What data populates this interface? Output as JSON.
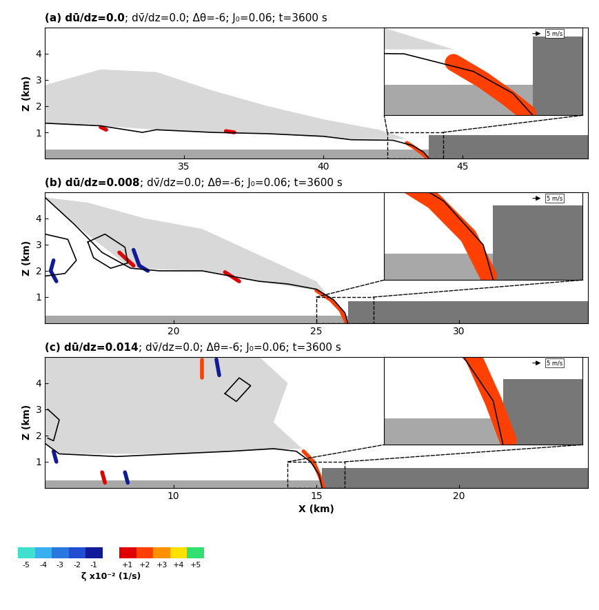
{
  "chart_data": [
    {
      "type": "contour_field",
      "title_bold": "(a) dū/dz=0.0",
      "title": "; dv̄/dz=0.0; Δθ=-6; J₀=0.06; t=3600 s",
      "xlim": [
        30,
        49.5
      ],
      "xticks": [
        35,
        40,
        45
      ],
      "ylim": [
        0,
        5
      ],
      "yticks": [
        1,
        2,
        3,
        4
      ],
      "y_label": "Z (km)",
      "front_x": 43.8,
      "ambient_layer_top": 0.9,
      "surface_layer_top": 0.35,
      "mixing_region": [
        [
          30,
          1.35
        ],
        [
          30,
          2.8
        ],
        [
          32,
          3.4
        ],
        [
          34,
          3.3
        ],
        [
          36,
          2.6
        ],
        [
          38,
          2.0
        ],
        [
          40,
          1.5
        ],
        [
          42,
          1.1
        ],
        [
          43,
          0.75
        ],
        [
          41,
          0.75
        ],
        [
          38,
          0.95
        ],
        [
          34,
          1.1
        ],
        [
          32,
          1.25
        ]
      ],
      "outline": [
        [
          30,
          1.35
        ],
        [
          32,
          1.25
        ],
        [
          33.5,
          1.0
        ],
        [
          34,
          1.1
        ],
        [
          36,
          1.0
        ],
        [
          38,
          0.95
        ],
        [
          40,
          0.85
        ],
        [
          41,
          0.72
        ],
        [
          42.5,
          0.7
        ],
        [
          43.2,
          0.5
        ],
        [
          43.6,
          0.25
        ],
        [
          43.8,
          0.0
        ]
      ],
      "outline_loops": [],
      "vorticity": [
        {
          "zeta": 1.5,
          "points": [
            [
              43.0,
              0.6
            ],
            [
              43.3,
              0.4
            ],
            [
              43.55,
              0.2
            ],
            [
              43.75,
              0.02
            ]
          ]
        },
        {
          "zeta": 1,
          "points": [
            [
              32.0,
              1.2
            ],
            [
              32.2,
              1.1
            ]
          ]
        },
        {
          "zeta": 1,
          "points": [
            [
              36.5,
              1.05
            ],
            [
              36.8,
              1.0
            ]
          ]
        }
      ],
      "inset_xlim": [
        42.3,
        44.3
      ],
      "inset_ylim": [
        0,
        1
      ],
      "inset_key": "5 m/s"
    },
    {
      "type": "contour_field",
      "title_bold": "(b) dū/dz=0.008",
      "title": "; dv̄/dz=0.0; Δθ=-6; J₀=0.06; t=3600 s",
      "xlim": [
        15.5,
        34.5
      ],
      "xticks": [
        20,
        25,
        30
      ],
      "ylim": [
        0,
        5
      ],
      "yticks": [
        1,
        2,
        3,
        4
      ],
      "y_label": "Z (km)",
      "front_x": 26.1,
      "ambient_layer_top": 0.85,
      "surface_layer_top": 0.3,
      "mixing_region": [
        [
          15.5,
          4.8
        ],
        [
          17,
          4.6
        ],
        [
          19,
          4.0
        ],
        [
          21,
          3.6
        ],
        [
          23,
          2.6
        ],
        [
          25,
          1.6
        ],
        [
          25.3,
          1.2
        ],
        [
          23,
          1.6
        ],
        [
          21,
          2.0
        ],
        [
          18.5,
          2.1
        ],
        [
          16.5,
          3.8
        ]
      ],
      "outline": [
        [
          15.5,
          4.8
        ],
        [
          16.5,
          3.8
        ],
        [
          17.5,
          2.7
        ],
        [
          18.5,
          2.1
        ],
        [
          19.5,
          2.0
        ],
        [
          21,
          2.0
        ],
        [
          22,
          1.8
        ],
        [
          23,
          1.6
        ],
        [
          24,
          1.5
        ],
        [
          25,
          1.3
        ],
        [
          25.6,
          0.9
        ],
        [
          26.0,
          0.4
        ],
        [
          26.1,
          0.0
        ]
      ],
      "outline_loops": [
        [
          [
            15.5,
            3.4
          ],
          [
            16.3,
            3.2
          ],
          [
            16.6,
            2.4
          ],
          [
            16.2,
            1.9
          ],
          [
            15.5,
            1.8
          ]
        ],
        [
          [
            17.0,
            3.1
          ],
          [
            17.6,
            3.4
          ],
          [
            18.3,
            2.9
          ],
          [
            18.4,
            2.3
          ],
          [
            17.8,
            2.1
          ],
          [
            17.2,
            2.5
          ],
          [
            17.0,
            3.1
          ]
        ]
      ],
      "vorticity": [
        {
          "zeta": 1.5,
          "points": [
            [
              25.0,
              1.25
            ],
            [
              25.5,
              0.9
            ],
            [
              25.85,
              0.5
            ],
            [
              26.05,
              0.05
            ]
          ]
        },
        {
          "zeta": 1,
          "points": [
            [
              21.8,
              1.95
            ],
            [
              22.3,
              1.6
            ]
          ]
        },
        {
          "zeta": -1.5,
          "points": [
            [
              15.8,
              2.4
            ],
            [
              15.7,
              2.0
            ],
            [
              15.9,
              1.6
            ]
          ]
        },
        {
          "zeta": 1,
          "points": [
            [
              18.1,
              2.7
            ],
            [
              18.6,
              2.2
            ]
          ]
        },
        {
          "zeta": -1,
          "points": [
            [
              18.6,
              2.8
            ],
            [
              18.8,
              2.2
            ],
            [
              19.1,
              2.0
            ]
          ]
        }
      ],
      "inset_xlim": [
        25,
        27
      ],
      "inset_ylim": [
        0,
        1
      ],
      "inset_key": "5 m/s"
    },
    {
      "type": "contour_field",
      "title_bold": "(c) dū/dz=0.014",
      "title": "; dv̄/dz=0.0; Δθ=-6; J₀=0.06; t=3600 s",
      "xlim": [
        5.5,
        24.5
      ],
      "xticks": [
        10,
        15,
        20
      ],
      "ylim": [
        0,
        5
      ],
      "yticks": [
        1,
        2,
        3,
        4
      ],
      "y_label": "Z (km)",
      "x_label": "X (km)",
      "front_x": 15.2,
      "ambient_layer_top": 0.75,
      "surface_layer_top": 0.3,
      "mixing_region": [
        [
          5.5,
          1.7
        ],
        [
          5.5,
          5
        ],
        [
          13,
          5
        ],
        [
          14,
          4
        ],
        [
          13.5,
          2.5
        ],
        [
          14.5,
          1.5
        ],
        [
          10,
          1.3
        ],
        [
          6,
          1.3
        ]
      ],
      "outline": [
        [
          5.5,
          1.7
        ],
        [
          6,
          1.3
        ],
        [
          8,
          1.2
        ],
        [
          10,
          1.3
        ],
        [
          12,
          1.4
        ],
        [
          13.5,
          1.5
        ],
        [
          14.3,
          1.4
        ],
        [
          14.8,
          1.0
        ],
        [
          15.1,
          0.5
        ],
        [
          15.2,
          0.0
        ]
      ],
      "outline_loops": [
        [
          [
            11.8,
            3.6
          ],
          [
            12.3,
            4.2
          ],
          [
            12.7,
            3.9
          ],
          [
            12.2,
            3.3
          ],
          [
            11.8,
            3.6
          ]
        ],
        [
          [
            5.6,
            3.0
          ],
          [
            6.0,
            2.6
          ],
          [
            5.8,
            1.8
          ],
          [
            5.6,
            1.9
          ]
        ]
      ],
      "vorticity": [
        {
          "zeta": 2,
          "points": [
            [
              14.55,
              1.4
            ],
            [
              14.9,
              1.0
            ],
            [
              15.1,
              0.5
            ],
            [
              15.25,
              0.05
            ]
          ]
        },
        {
          "zeta": 1.5,
          "points": [
            [
              11.0,
              4.9
            ],
            [
              11.0,
              4.2
            ]
          ]
        },
        {
          "zeta": -1.5,
          "points": [
            [
              11.5,
              4.9
            ],
            [
              11.6,
              4.3
            ]
          ]
        },
        {
          "zeta": -1,
          "points": [
            [
              8.3,
              0.6
            ],
            [
              8.4,
              0.2
            ]
          ]
        },
        {
          "zeta": 1,
          "points": [
            [
              7.5,
              0.6
            ],
            [
              7.6,
              0.2
            ]
          ]
        },
        {
          "zeta": -1.5,
          "points": [
            [
              5.8,
              1.4
            ],
            [
              5.9,
              1.0
            ]
          ]
        }
      ],
      "inset_xlim": [
        14,
        16
      ],
      "inset_ylim": [
        0,
        1
      ],
      "inset_key": "5 m/s"
    }
  ],
  "colorbar": {
    "label": "ζ x10⁻² (1/s)",
    "boundaries": [
      -5.5,
      -4.5,
      -3.5,
      -2.5,
      -1.5,
      -0.5,
      0.5,
      1.5,
      2.5,
      3.5,
      4.5,
      5.5
    ],
    "colors": [
      "#40e0d0",
      "#38b0f0",
      "#2878e0",
      "#1f4fd0",
      "#101a9a",
      "#ffffff",
      "#e00000",
      "#ff4000",
      "#ff9000",
      "#ffe000",
      "#30e070"
    ],
    "ticks": [
      -5,
      -4,
      -3,
      -2,
      -1,
      {
        "value": 1,
        "label": "+1"
      },
      {
        "value": 2,
        "label": "+2"
      },
      {
        "value": 3,
        "label": "+3"
      },
      {
        "value": 4,
        "label": "+4"
      },
      {
        "value": 5,
        "label": "+5"
      }
    ]
  }
}
